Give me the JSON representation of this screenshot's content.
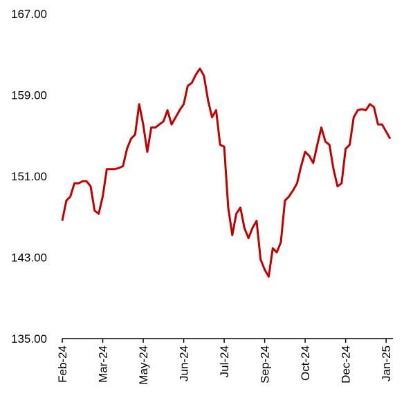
{
  "chart_data": {
    "type": "line",
    "categories": [
      "Feb-24",
      null,
      null,
      null,
      null,
      null,
      null,
      null,
      null,
      null,
      "Mar-24",
      null,
      null,
      null,
      null,
      null,
      null,
      null,
      null,
      null,
      "May-24",
      null,
      null,
      null,
      null,
      null,
      null,
      null,
      null,
      null,
      "Jun-24",
      null,
      null,
      null,
      null,
      null,
      null,
      null,
      null,
      null,
      "Jul-24",
      null,
      null,
      null,
      null,
      null,
      null,
      null,
      null,
      null,
      "Sep-24",
      null,
      null,
      null,
      null,
      null,
      null,
      null,
      null,
      null,
      "Oct-24",
      null,
      null,
      null,
      null,
      null,
      null,
      null,
      null,
      null,
      "Dec-24",
      null,
      null,
      null,
      null,
      null,
      null,
      null,
      null,
      null,
      "Jan-25",
      null
    ],
    "values": [
      146.6,
      148.6,
      149.0,
      150.3,
      150.3,
      150.5,
      150.5,
      150.0,
      147.6,
      147.3,
      149.0,
      151.7,
      151.7,
      151.7,
      151.8,
      152.0,
      153.7,
      154.7,
      155.1,
      158.1,
      156.1,
      153.4,
      155.8,
      155.8,
      156.1,
      156.4,
      157.5,
      156.1,
      156.8,
      157.5,
      158.1,
      159.9,
      160.2,
      161.0,
      161.6,
      160.9,
      158.5,
      156.8,
      157.5,
      154.1,
      153.9,
      147.9,
      145.2,
      147.3,
      147.9,
      145.9,
      144.9,
      145.9,
      146.6,
      142.8,
      141.8,
      141.1,
      143.9,
      143.5,
      144.5,
      148.6,
      149.0,
      149.6,
      150.3,
      152.0,
      153.4,
      153.0,
      152.3,
      154.1,
      155.8,
      154.4,
      154.1,
      151.7,
      150.0,
      150.3,
      153.7,
      154.1,
      156.8,
      157.5,
      157.6,
      157.5,
      158.1,
      157.8,
      156.1,
      156.1,
      155.4,
      154.7
    ],
    "color": "#c00000",
    "ylim": [
      135,
      167
    ],
    "yticks": [
      {
        "value": 135,
        "label": "135.00"
      },
      {
        "value": 143,
        "label": "143.00"
      },
      {
        "value": 151,
        "label": "151.00"
      },
      {
        "value": 159,
        "label": "159.00"
      },
      {
        "value": 167,
        "label": "167.00"
      }
    ]
  }
}
